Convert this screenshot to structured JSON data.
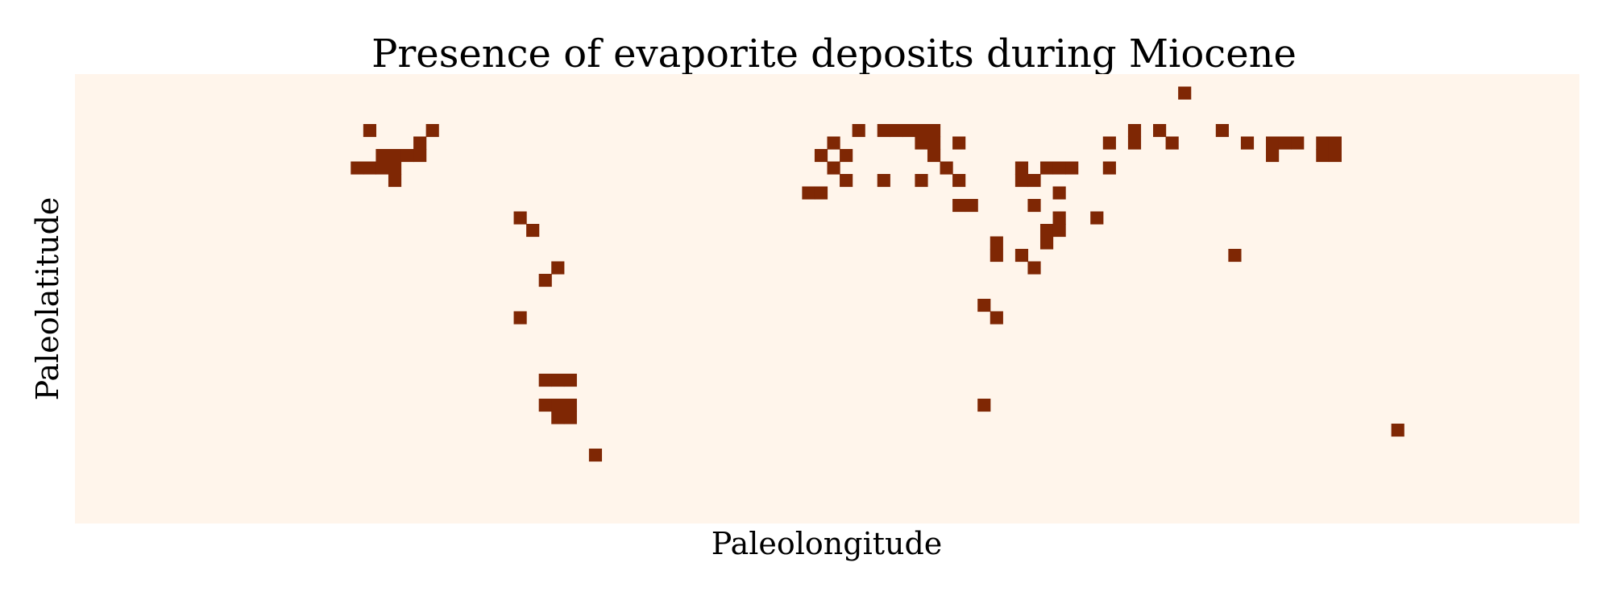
{
  "chart_data": {
    "type": "heatmap",
    "title": "Presence of evaporite deposits during Miocene",
    "xlabel": "Paleolongitude",
    "ylabel": "Paleolatitude",
    "grid": false,
    "legend": "none",
    "grid_size": {
      "cols": 120,
      "rows": 36
    },
    "colors": {
      "absent": "#fff5eb",
      "present": "#7f2704"
    },
    "present_cells": [
      [
        88,
        1
      ],
      [
        23,
        4
      ],
      [
        28,
        4
      ],
      [
        62,
        4
      ],
      [
        64,
        4
      ],
      [
        65,
        4
      ],
      [
        66,
        4
      ],
      [
        67,
        4
      ],
      [
        68,
        4
      ],
      [
        84,
        4
      ],
      [
        86,
        4
      ],
      [
        91,
        4
      ],
      [
        27,
        5
      ],
      [
        60,
        5
      ],
      [
        67,
        5
      ],
      [
        68,
        5
      ],
      [
        70,
        5
      ],
      [
        82,
        5
      ],
      [
        84,
        5
      ],
      [
        87,
        5
      ],
      [
        93,
        5
      ],
      [
        95,
        5
      ],
      [
        96,
        5
      ],
      [
        97,
        5
      ],
      [
        99,
        5
      ],
      [
        100,
        5
      ],
      [
        24,
        6
      ],
      [
        25,
        6
      ],
      [
        26,
        6
      ],
      [
        27,
        6
      ],
      [
        59,
        6
      ],
      [
        61,
        6
      ],
      [
        68,
        6
      ],
      [
        95,
        6
      ],
      [
        99,
        6
      ],
      [
        100,
        6
      ],
      [
        22,
        7
      ],
      [
        23,
        7
      ],
      [
        24,
        7
      ],
      [
        25,
        7
      ],
      [
        60,
        7
      ],
      [
        69,
        7
      ],
      [
        75,
        7
      ],
      [
        77,
        7
      ],
      [
        78,
        7
      ],
      [
        79,
        7
      ],
      [
        82,
        7
      ],
      [
        25,
        8
      ],
      [
        61,
        8
      ],
      [
        64,
        8
      ],
      [
        67,
        8
      ],
      [
        70,
        8
      ],
      [
        75,
        8
      ],
      [
        76,
        8
      ],
      [
        58,
        9
      ],
      [
        59,
        9
      ],
      [
        78,
        9
      ],
      [
        70,
        10
      ],
      [
        71,
        10
      ],
      [
        76,
        10
      ],
      [
        35,
        11
      ],
      [
        78,
        11
      ],
      [
        81,
        11
      ],
      [
        36,
        12
      ],
      [
        77,
        12
      ],
      [
        78,
        12
      ],
      [
        73,
        13
      ],
      [
        77,
        13
      ],
      [
        73,
        14
      ],
      [
        75,
        14
      ],
      [
        92,
        14
      ],
      [
        38,
        15
      ],
      [
        76,
        15
      ],
      [
        37,
        16
      ],
      [
        72,
        18
      ],
      [
        35,
        19
      ],
      [
        73,
        19
      ],
      [
        37,
        24
      ],
      [
        38,
        24
      ],
      [
        39,
        24
      ],
      [
        37,
        26
      ],
      [
        38,
        26
      ],
      [
        39,
        26
      ],
      [
        72,
        26
      ],
      [
        38,
        27
      ],
      [
        39,
        27
      ],
      [
        105,
        28
      ],
      [
        41,
        30
      ]
    ]
  }
}
